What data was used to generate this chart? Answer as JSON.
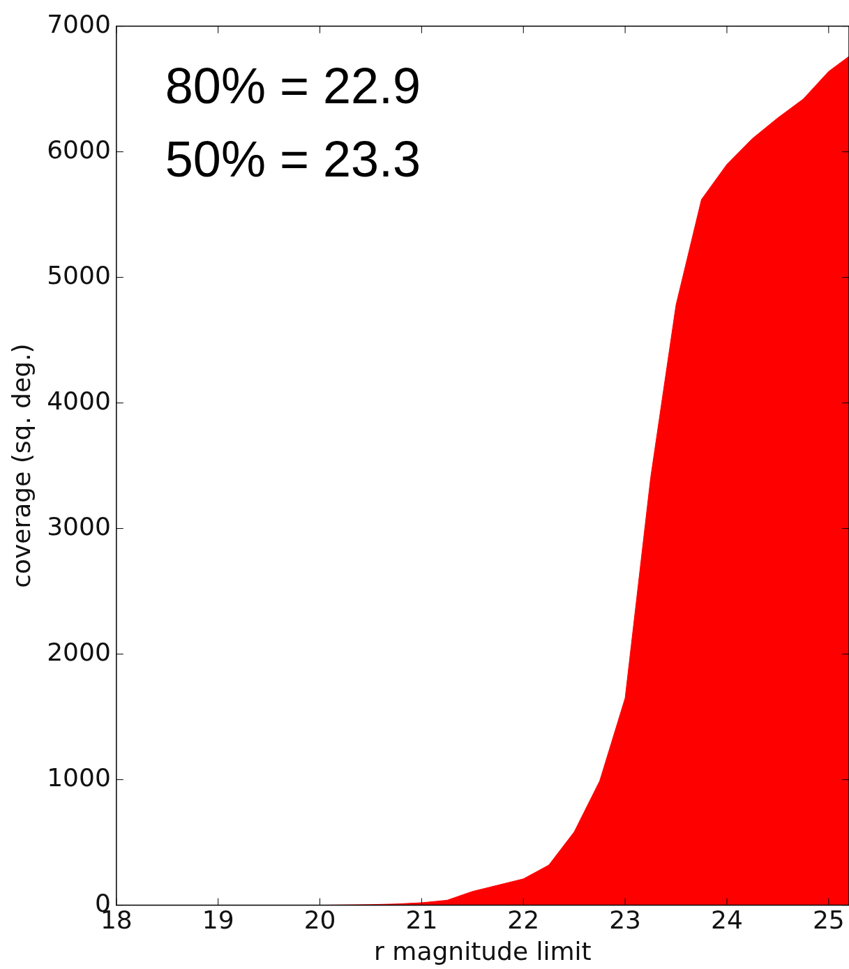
{
  "chart_data": {
    "type": "area",
    "xlabel": "r magnitude limit",
    "ylabel": "coverage (sq. deg.)",
    "annotations": [
      "80% = 22.9",
      "50% = 23.3"
    ],
    "x": [
      18,
      18.5,
      19,
      19.5,
      20,
      20.5,
      20.75,
      21,
      21.25,
      21.5,
      21.75,
      22,
      22.25,
      22.5,
      22.75,
      23,
      23.25,
      23.5,
      23.75,
      24,
      24.25,
      24.5,
      24.75,
      25,
      25.2
    ],
    "series": [
      {
        "color": "#ff0000",
        "values": [
          0,
          0,
          0,
          0,
          0,
          5,
          10,
          20,
          40,
          110,
          160,
          210,
          320,
          585,
          990,
          1650,
          3400,
          4780,
          5620,
          5900,
          6105,
          6270,
          6420,
          6640,
          6760
        ]
      }
    ],
    "xlim": [
      18,
      25.2
    ],
    "xticks": [
      18,
      19,
      20,
      21,
      22,
      23,
      24,
      25
    ],
    "ylim": [
      0,
      7000
    ],
    "yticks": [
      0,
      1000,
      2000,
      3000,
      4000,
      5000,
      6000,
      7000
    ],
    "grid": false,
    "legend": false
  }
}
